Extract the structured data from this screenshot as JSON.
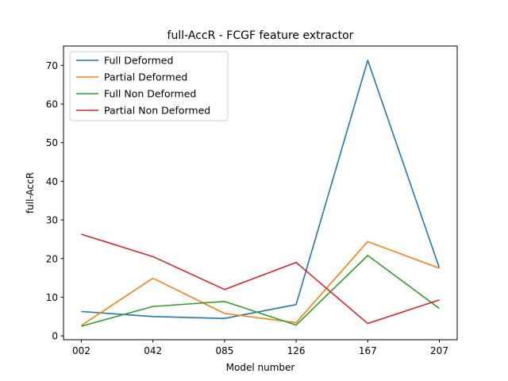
{
  "chart_data": {
    "type": "line",
    "title": "full-AccR - FCGF feature extractor",
    "xlabel": "Model number",
    "ylabel": "full-AccR",
    "categories": [
      "002",
      "042",
      "085",
      "126",
      "167",
      "207"
    ],
    "ylim": [
      -1,
      75
    ],
    "yticks": [
      0,
      10,
      20,
      30,
      40,
      50,
      60,
      70
    ],
    "grid": false,
    "legend_position": "top-left",
    "series": [
      {
        "name": "Full Deformed",
        "color": "#1f77b4",
        "values": [
          6.3,
          5.0,
          4.5,
          8.1,
          71.3,
          17.6
        ]
      },
      {
        "name": "Partial Deformed",
        "color": "#ff7f0e",
        "values": [
          2.7,
          14.9,
          5.8,
          3.4,
          24.4,
          17.5
        ]
      },
      {
        "name": "Full Non Deformed",
        "color": "#2ca02c",
        "values": [
          2.5,
          7.6,
          8.9,
          2.8,
          20.8,
          7.1
        ]
      },
      {
        "name": "Partial Non Deformed",
        "color": "#d62728",
        "values": [
          26.3,
          20.5,
          12.0,
          19.0,
          3.2,
          9.3
        ]
      }
    ]
  }
}
